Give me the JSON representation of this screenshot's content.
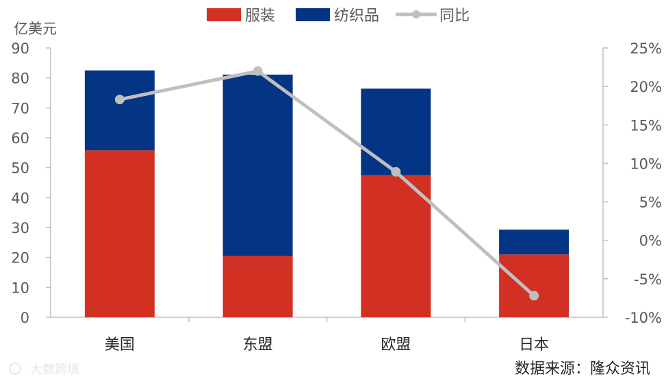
{
  "chart_data": {
    "type": "bar",
    "stacked": true,
    "categories": [
      "美国",
      "东盟",
      "欧盟",
      "日本"
    ],
    "series": [
      {
        "name": "服装",
        "type": "bar",
        "axis": "left",
        "color": "#D13023",
        "values": [
          55.8,
          20.5,
          47.5,
          21.0
        ]
      },
      {
        "name": "纺织品",
        "type": "bar",
        "axis": "left",
        "color": "#043484",
        "values": [
          26.7,
          60.6,
          28.9,
          8.3
        ]
      },
      {
        "name": "同比",
        "type": "line",
        "axis": "right",
        "color": "#BFBFBF",
        "values": [
          18.3,
          22.0,
          8.9,
          -7.2
        ]
      }
    ],
    "ylabel": "亿美元",
    "ylim": [
      0,
      90
    ],
    "yticks": [
      "0",
      "10",
      "20",
      "30",
      "40",
      "50",
      "60",
      "70",
      "80",
      "90"
    ],
    "y2lim": [
      -10,
      25
    ],
    "y2ticks": [
      "-10%",
      "-5%",
      "0%",
      "5%",
      "10%",
      "15%",
      "20%",
      "25%"
    ],
    "legend_position": "top-center",
    "grid": false
  },
  "source": "数据来源：隆众资讯",
  "watermark": "大数跨境"
}
